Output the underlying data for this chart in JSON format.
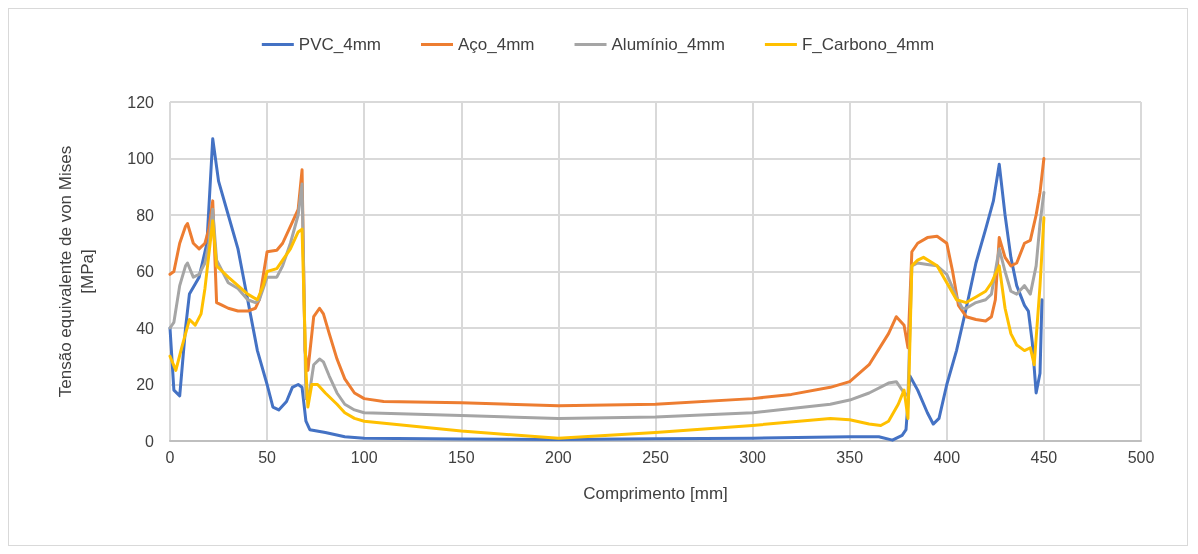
{
  "chart_data": {
    "type": "line",
    "xlabel": "Comprimento [mm]",
    "ylabel": "Tensão equivalente de von Mises\n[MPa]",
    "xlim": [
      0,
      500
    ],
    "xticks": [
      0,
      50,
      100,
      150,
      200,
      250,
      300,
      350,
      400,
      450,
      500
    ],
    "ylim": [
      0,
      120
    ],
    "yticks": [
      0,
      20,
      40,
      60,
      80,
      100,
      120
    ],
    "grid": true,
    "legend": "top",
    "marker": "none",
    "line_style": "solid",
    "series": [
      {
        "name": "PVC_4mm",
        "color": "#4472c4",
        "x": [
          0,
          2,
          5,
          8,
          10,
          15,
          19,
          22,
          25,
          30,
          35,
          40,
          45,
          50,
          53,
          56,
          60,
          63,
          66,
          68,
          70,
          72,
          80,
          90,
          100,
          150,
          200,
          250,
          300,
          350,
          365,
          372,
          377,
          379,
          381,
          385,
          390,
          393,
          396,
          400,
          405,
          410,
          415,
          420,
          424,
          427,
          430,
          433,
          436,
          440,
          442,
          444,
          446,
          448,
          449
        ],
        "values": [
          40,
          18,
          16,
          40,
          52,
          58,
          70,
          107,
          92,
          80,
          68,
          50,
          32,
          20,
          12,
          11,
          14,
          19,
          20,
          19,
          7,
          4,
          3,
          1.5,
          1,
          0.7,
          0.5,
          0.8,
          1,
          1.5,
          1.5,
          0.3,
          2,
          4,
          23,
          18,
          10,
          6,
          8,
          20,
          32,
          47,
          63,
          75,
          85,
          98,
          80,
          65,
          55,
          48,
          46,
          35,
          17,
          24,
          50
        ]
      },
      {
        "name": "Aço_4mm",
        "color": "#ed7d31",
        "x": [
          0,
          2,
          5,
          8,
          9,
          12,
          15,
          18,
          20,
          22,
          24,
          27,
          30,
          35,
          40,
          44,
          46,
          50,
          55,
          58,
          62,
          66,
          68,
          69.5,
          71,
          74,
          77,
          79,
          82,
          86,
          90,
          95,
          100,
          110,
          150,
          200,
          250,
          300,
          320,
          340,
          350,
          360,
          370,
          374,
          378,
          380,
          382,
          385,
          390,
          395,
          400,
          403,
          406,
          410,
          415,
          420,
          423,
          425,
          427,
          430,
          433,
          436,
          440,
          443,
          446,
          448,
          450
        ],
        "values": [
          59,
          60,
          70,
          76,
          77,
          70,
          68,
          70,
          75,
          85,
          49,
          48,
          47,
          46,
          46,
          47,
          50,
          67,
          67.5,
          70,
          76,
          82,
          96,
          32,
          25,
          44,
          47,
          45,
          38,
          29,
          22,
          17,
          15,
          14,
          13.5,
          12.5,
          13,
          15,
          16.5,
          19,
          21,
          27,
          38,
          44,
          41,
          33,
          67,
          70,
          72,
          72.5,
          70,
          60,
          48,
          44,
          43,
          42.5,
          44,
          50,
          72,
          65,
          62,
          63,
          70,
          71,
          80,
          88,
          100
        ]
      },
      {
        "name": "Alumínio_4mm",
        "color": "#a5a5a5",
        "x": [
          0,
          2,
          5,
          8,
          9,
          12,
          15,
          18,
          20,
          22,
          24,
          27,
          30,
          35,
          40,
          44,
          46,
          50,
          55,
          58,
          62,
          66,
          68,
          70,
          72,
          74,
          77,
          79,
          82,
          86,
          90,
          95,
          100,
          150,
          200,
          250,
          300,
          320,
          340,
          350,
          360,
          370,
          374,
          378,
          380,
          382,
          385,
          390,
          395,
          400,
          405,
          408,
          410,
          415,
          420,
          423,
          427,
          430,
          433,
          436,
          440,
          443,
          446,
          448,
          450
        ],
        "values": [
          40,
          42,
          55,
          62,
          63,
          58,
          59,
          63,
          70,
          82,
          64,
          60,
          56,
          54,
          50,
          49,
          50,
          58,
          58,
          62,
          70,
          80,
          91,
          15,
          18,
          27,
          29,
          28,
          23,
          17,
          13,
          11,
          10,
          9,
          8,
          8.5,
          10,
          11.5,
          13,
          14.5,
          17,
          20.5,
          21,
          17,
          16,
          62,
          63,
          62.5,
          62,
          59,
          51,
          47,
          47,
          49,
          50,
          52,
          68,
          60,
          53,
          52,
          55,
          52,
          62,
          77,
          88
        ]
      },
      {
        "name": "F_Carbono_4mm",
        "color": "#ffc000",
        "x": [
          0,
          3,
          6,
          10,
          13,
          16,
          18,
          20,
          22,
          24,
          27,
          30,
          35,
          40,
          45,
          48,
          50,
          55,
          58,
          62,
          66,
          68,
          70,
          71,
          73,
          76,
          80,
          86,
          90,
          95,
          100,
          150,
          200,
          250,
          300,
          340,
          350,
          360,
          366,
          370,
          375,
          378,
          380,
          382,
          385,
          388,
          395,
          400,
          405,
          410,
          415,
          420,
          423,
          427,
          430,
          433,
          436,
          440,
          443,
          445,
          448,
          450
        ],
        "values": [
          30,
          25,
          33,
          43,
          41,
          45,
          54,
          66,
          78,
          62,
          60,
          58,
          55,
          52,
          50,
          55,
          60,
          61,
          64,
          68,
          74,
          75,
          25,
          12,
          20,
          20,
          17,
          13,
          10,
          8,
          7,
          3.5,
          1,
          3,
          5.5,
          8,
          7.5,
          6,
          5.5,
          7,
          13,
          18,
          8,
          62,
          64,
          65,
          62,
          56,
          50,
          49,
          51,
          53,
          56,
          62,
          47,
          38,
          34,
          32,
          33,
          27,
          55,
          79
        ]
      }
    ]
  }
}
